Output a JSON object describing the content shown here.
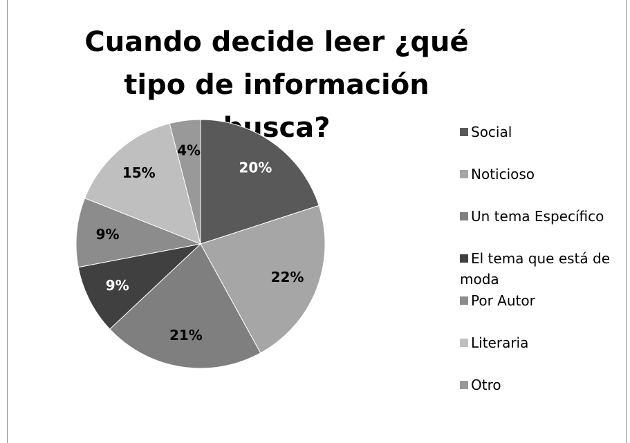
{
  "chart_data": {
    "type": "pie",
    "title": "Cuando decide leer ¿qué tipo de información busca?",
    "categories": [
      "Social",
      "Noticioso",
      "Un tema Específico",
      "El tema que está de moda",
      "Por Autor",
      "Literaria",
      "Otro"
    ],
    "values": [
      20,
      22,
      21,
      9,
      9,
      15,
      4
    ],
    "value_labels": [
      "20%",
      "22%",
      "21%",
      "9%",
      "9%",
      "15%",
      "4%"
    ],
    "colors": [
      "#595959",
      "#a6a6a6",
      "#7f7f7f",
      "#404040",
      "#8c8c8c",
      "#bfbfbf",
      "#999999"
    ],
    "legend": "right"
  }
}
